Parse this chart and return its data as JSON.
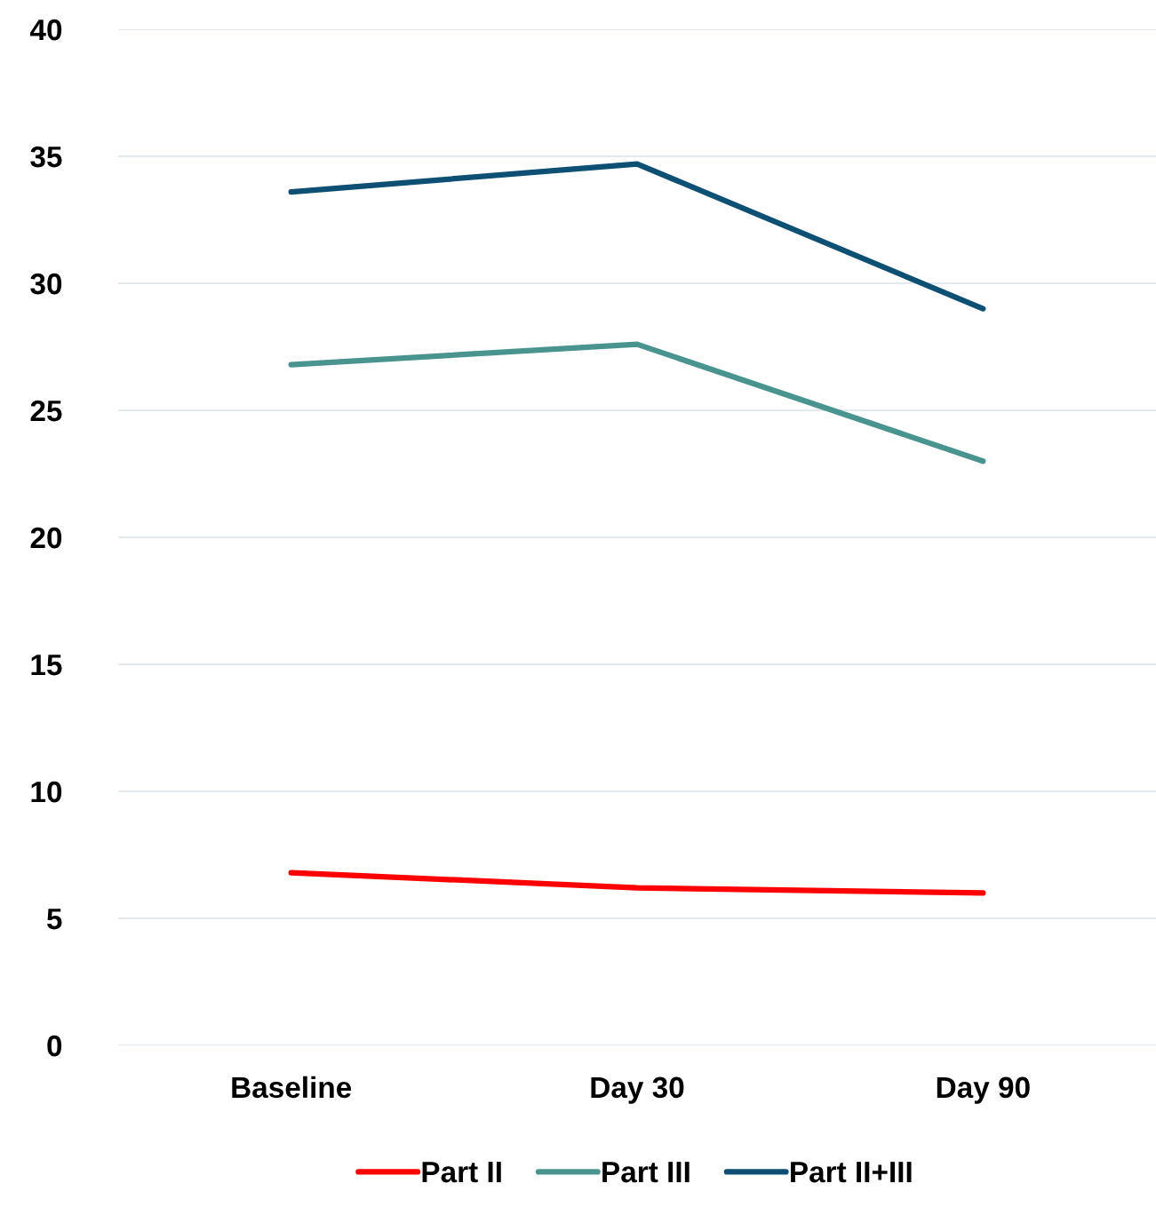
{
  "chart_data": {
    "type": "line",
    "categories": [
      "Baseline",
      "Day 30",
      "Day 90"
    ],
    "series": [
      {
        "name": "Part II",
        "color": "#ff0000",
        "values": [
          6.8,
          6.2,
          6.0
        ]
      },
      {
        "name": "Part III",
        "color": "#4a9490",
        "values": [
          26.8,
          27.6,
          23.0
        ]
      },
      {
        "name": "Part II+III",
        "color": "#0e4f74",
        "values": [
          33.6,
          34.7,
          29.0
        ]
      }
    ],
    "ylim": [
      0,
      40
    ],
    "yticks": [
      0,
      5,
      10,
      15,
      20,
      25,
      30,
      35,
      40
    ],
    "grid": "y",
    "legend": "bottom",
    "marker": "none",
    "line_style": "solid"
  }
}
